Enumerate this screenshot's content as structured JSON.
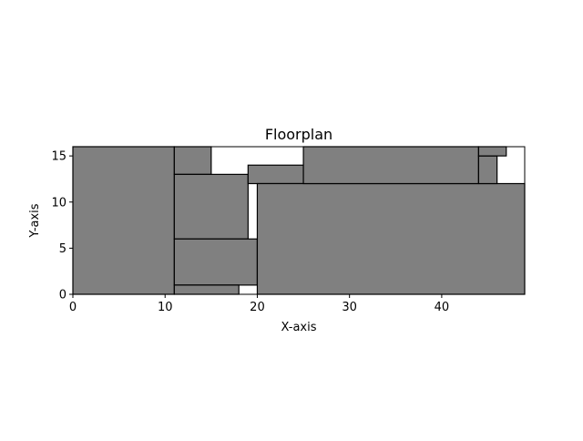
{
  "chart_data": {
    "type": "floorplan",
    "title": "Floorplan",
    "xlabel": "X-axis",
    "ylabel": "Y-axis",
    "xlim": [
      0,
      49
    ],
    "ylim": [
      0,
      16
    ],
    "xticks": [
      0,
      10,
      20,
      30,
      40
    ],
    "yticks": [
      0,
      5,
      10,
      15
    ],
    "grid": false,
    "colors": {
      "room_fill": "#808080",
      "room_edge": "#000000",
      "background": "#ffffff"
    },
    "rooms": [
      {
        "x": 0,
        "y": 0,
        "width": 11,
        "height": 16
      },
      {
        "x": 11,
        "y": 13,
        "width": 4,
        "height": 3
      },
      {
        "x": 11,
        "y": 6,
        "width": 8,
        "height": 7
      },
      {
        "x": 11,
        "y": 1,
        "width": 9,
        "height": 5
      },
      {
        "x": 11,
        "y": 0,
        "width": 7,
        "height": 1
      },
      {
        "x": 19,
        "y": 12,
        "width": 6,
        "height": 2
      },
      {
        "x": 20,
        "y": 0,
        "width": 29,
        "height": 12
      },
      {
        "x": 25,
        "y": 12,
        "width": 19,
        "height": 4
      },
      {
        "x": 44,
        "y": 12,
        "width": 2,
        "height": 3
      },
      {
        "x": 44,
        "y": 15,
        "width": 3,
        "height": 1
      }
    ]
  }
}
